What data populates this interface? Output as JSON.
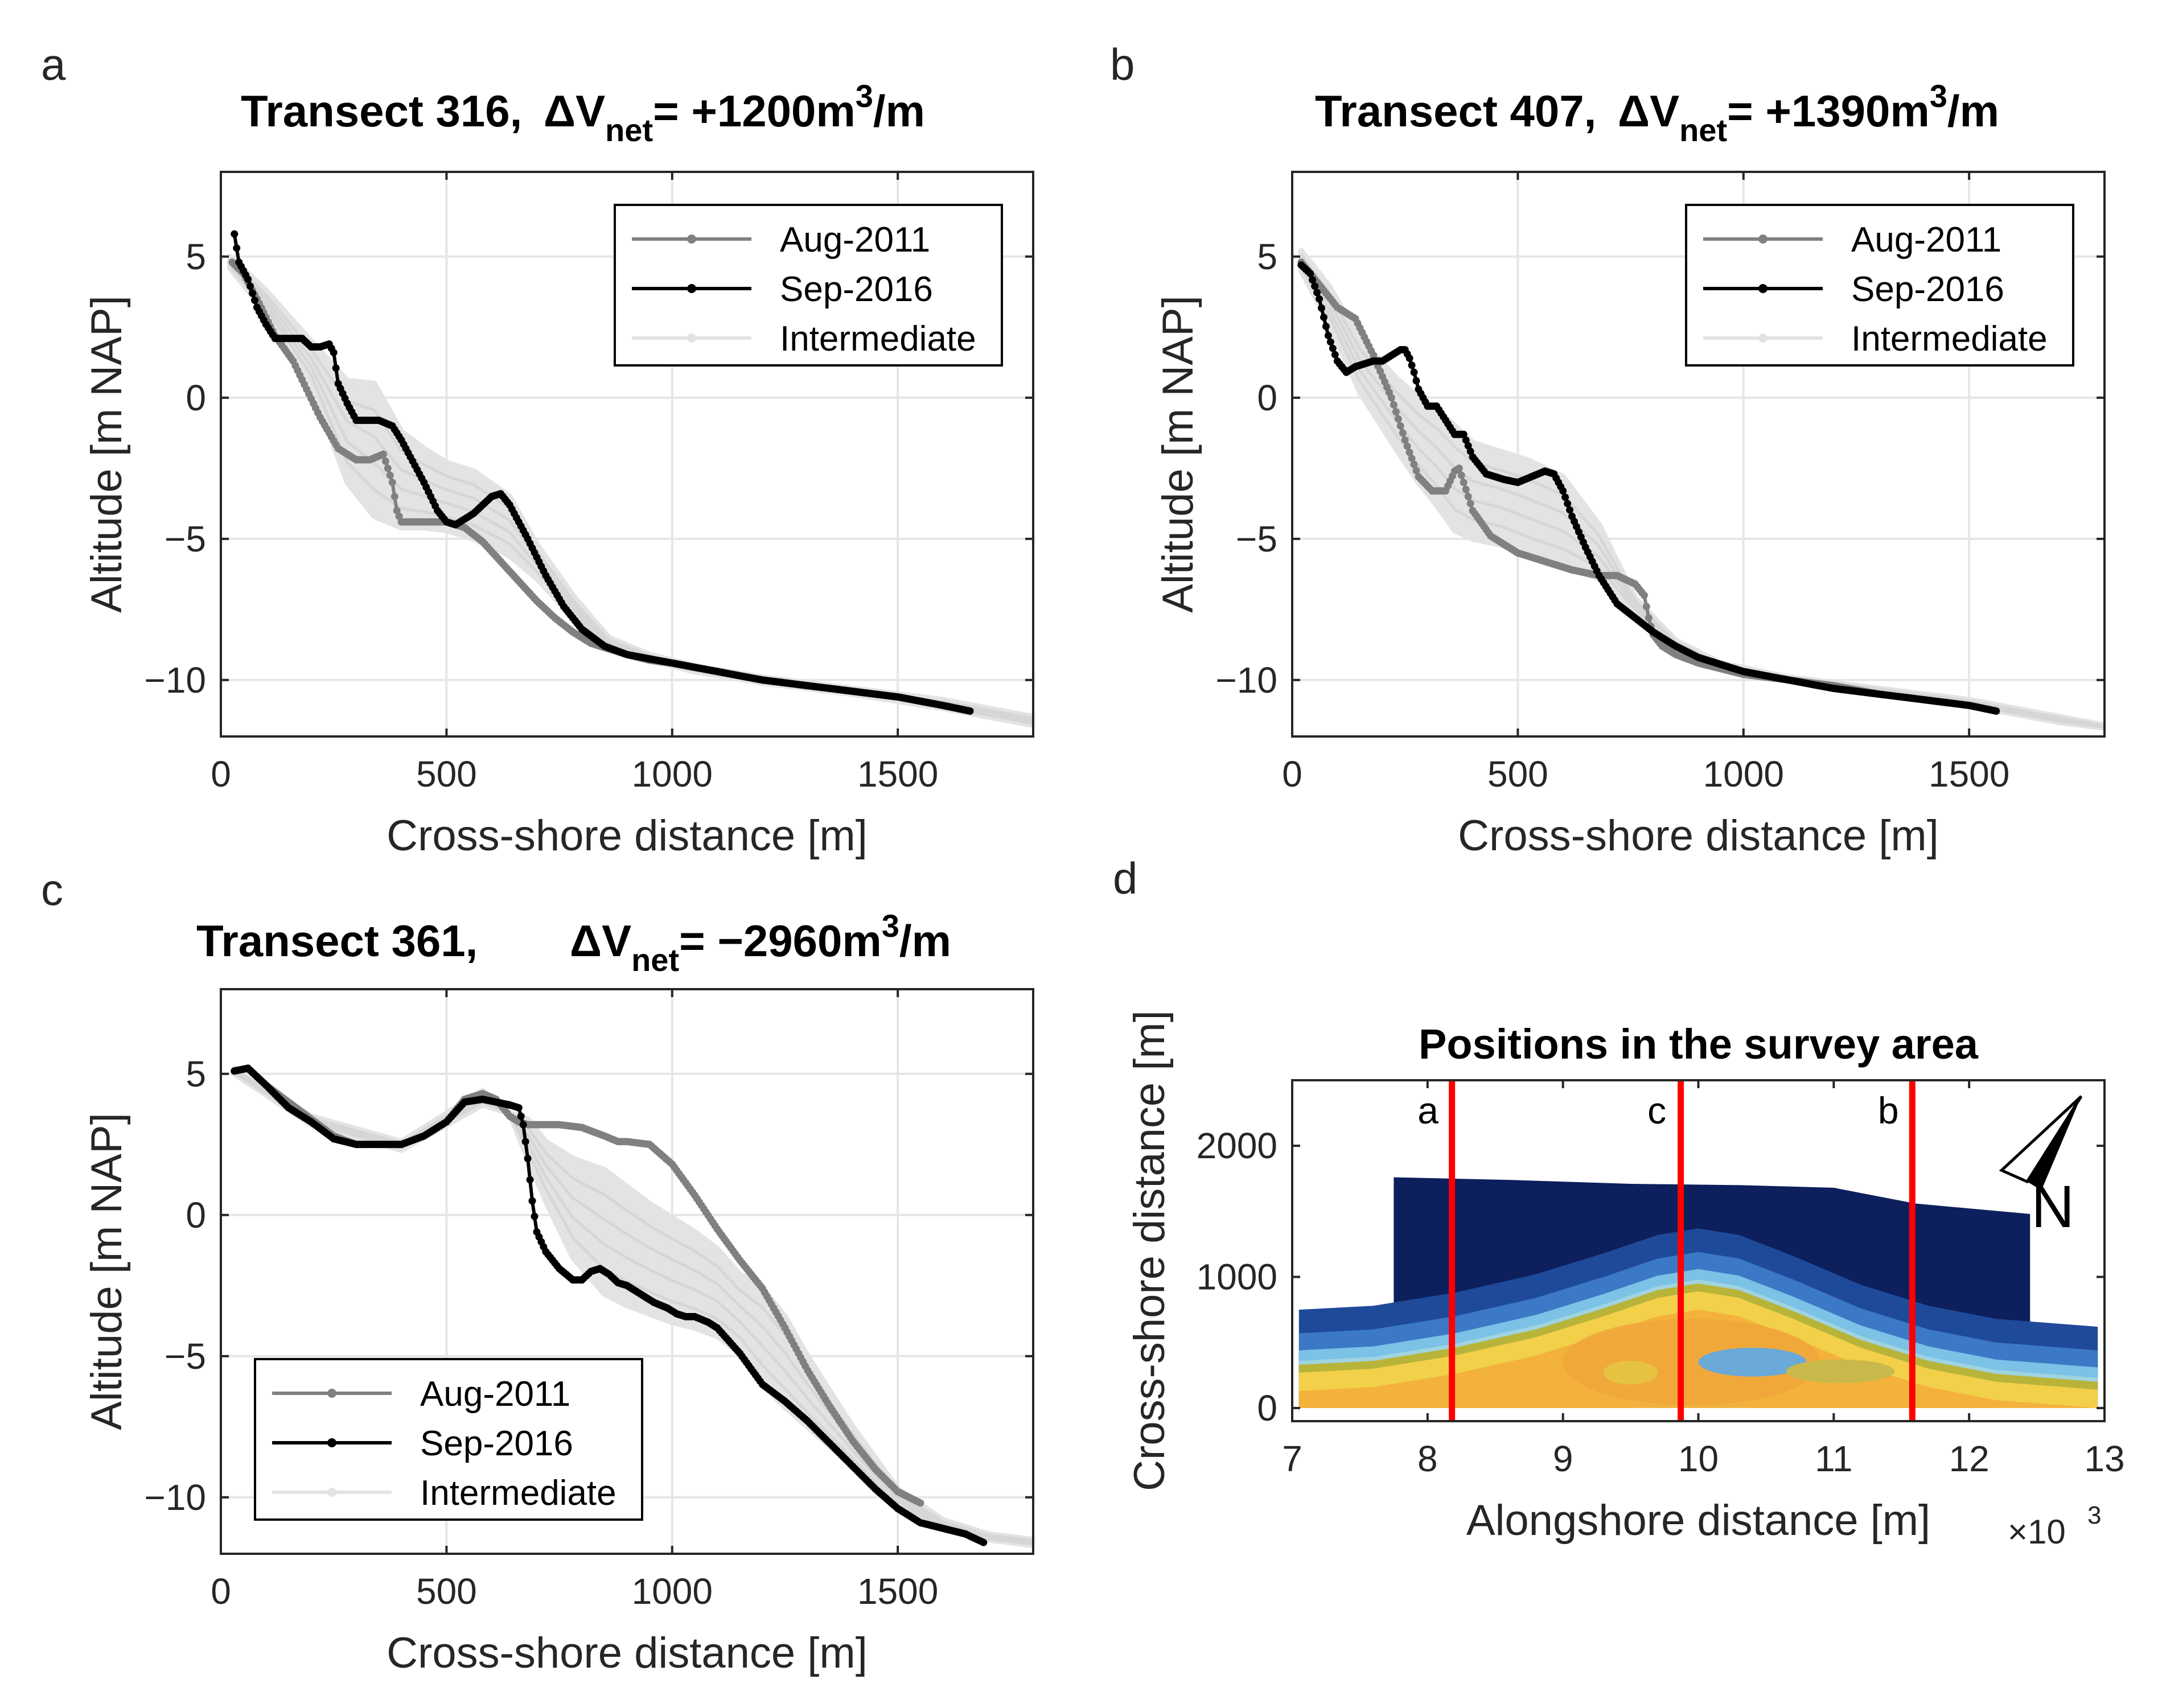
{
  "colors": {
    "aug": "#808080",
    "sep": "#000000",
    "intermediate": "#e3e3e3",
    "grid": "#e6e6e6",
    "transect_line": "#ff0000",
    "axis": "#262626"
  },
  "chart_data": [
    {
      "id": "a",
      "type": "line",
      "panel_letter": "a",
      "title": {
        "text": "Transect 316,",
        "dv_sym": "ΔV",
        "dv_sub": "net",
        "dv_eq": "= +1200m",
        "dv_sup": "3",
        "dv_unit": "/m"
      },
      "xlabel": "Cross-shore distance [m]",
      "ylabel": "Altitude [m NAP]",
      "xlim": [
        0,
        1800
      ],
      "ylim": [
        -12,
        8
      ],
      "xticks": [
        0,
        500,
        1000,
        1500
      ],
      "yticks": [
        -10,
        -5,
        0,
        5
      ],
      "xtick_labels": [
        "0",
        "500",
        "1000",
        "1500"
      ],
      "ytick_labels": [
        "−10",
        "−5",
        "0",
        "5"
      ],
      "grid": true,
      "legend": {
        "position": "top-right",
        "entries": [
          "Aug-2011",
          "Sep-2016",
          "Intermediate"
        ]
      },
      "series": [
        {
          "name": "Aug-2011",
          "x": [
            25,
            50,
            80,
            120,
            160,
            190,
            220,
            260,
            300,
            330,
            360,
            380,
            390,
            400,
            420,
            460,
            500,
            540,
            580,
            620,
            660,
            700,
            740,
            780,
            820,
            860,
            900,
            950,
            1000,
            1100,
            1200,
            1300,
            1400,
            1500,
            1600,
            1660
          ],
          "y": [
            4.8,
            4.4,
            3.5,
            2.2,
            1.3,
            0.3,
            -0.7,
            -1.8,
            -2.2,
            -2.2,
            -2.0,
            -3.0,
            -4.0,
            -4.4,
            -4.4,
            -4.4,
            -4.4,
            -4.6,
            -5.1,
            -5.8,
            -6.5,
            -7.2,
            -7.8,
            -8.3,
            -8.7,
            -8.9,
            -9.1,
            -9.3,
            -9.4,
            -9.7,
            -10.0,
            -10.2,
            -10.4,
            -10.6,
            -10.9,
            -11.1
          ]
        },
        {
          "name": "Sep-2016",
          "x": [
            30,
            40,
            60,
            80,
            100,
            120,
            150,
            180,
            200,
            220,
            240,
            250,
            260,
            280,
            300,
            320,
            350,
            380,
            400,
            420,
            450,
            480,
            500,
            520,
            560,
            600,
            620,
            640,
            680,
            720,
            760,
            800,
            850,
            900,
            1000,
            1100,
            1200,
            1300,
            1400,
            1500,
            1600,
            1660
          ],
          "y": [
            5.8,
            4.8,
            4.2,
            3.2,
            2.6,
            2.1,
            2.1,
            2.1,
            1.8,
            1.8,
            1.9,
            1.6,
            0.5,
            -0.2,
            -0.8,
            -0.8,
            -0.8,
            -1.0,
            -1.5,
            -2.1,
            -3.0,
            -4.0,
            -4.4,
            -4.5,
            -4.1,
            -3.5,
            -3.4,
            -3.8,
            -5.0,
            -6.3,
            -7.4,
            -8.2,
            -8.8,
            -9.1,
            -9.4,
            -9.7,
            -10.0,
            -10.2,
            -10.4,
            -10.6,
            -10.9,
            -11.1
          ]
        }
      ],
      "intermediate_band": {
        "x": [
          20,
          100,
          200,
          280,
          340,
          400,
          450,
          500,
          560,
          640,
          700,
          780,
          860,
          950,
          1050,
          1200,
          1400,
          1600,
          1800
        ],
        "upper": [
          5.0,
          3.8,
          2.0,
          0.6,
          0.5,
          -1.2,
          -1.8,
          -2.3,
          -2.6,
          -3.5,
          -5.2,
          -7.0,
          -8.5,
          -9.1,
          -9.5,
          -9.9,
          -10.3,
          -10.7,
          -11.3
        ],
        "lower": [
          4.6,
          3.0,
          0.5,
          -3.0,
          -4.2,
          -4.6,
          -4.6,
          -4.7,
          -5.0,
          -5.6,
          -6.4,
          -7.8,
          -8.9,
          -9.3,
          -9.7,
          -10.1,
          -10.5,
          -11.0,
          -11.6
        ]
      }
    },
    {
      "id": "b",
      "type": "line",
      "panel_letter": "b",
      "title": {
        "text": "Transect 407,",
        "dv_sym": "ΔV",
        "dv_sub": "net",
        "dv_eq": "= +1390m",
        "dv_sup": "3",
        "dv_unit": "/m"
      },
      "xlabel": "Cross-shore distance [m]",
      "ylabel": "Altitude [m NAP]",
      "xlim": [
        0,
        1800
      ],
      "ylim": [
        -12,
        8
      ],
      "xticks": [
        0,
        500,
        1000,
        1500
      ],
      "yticks": [
        -10,
        -5,
        0,
        5
      ],
      "xtick_labels": [
        "0",
        "500",
        "1000",
        "1500"
      ],
      "ytick_labels": [
        "−10",
        "−5",
        "0",
        "5"
      ],
      "grid": true,
      "legend": {
        "position": "top-right",
        "entries": [
          "Aug-2011",
          "Sep-2016",
          "Intermediate"
        ]
      },
      "series": [
        {
          "name": "Aug-2011",
          "x": [
            20,
            60,
            100,
            140,
            180,
            220,
            250,
            280,
            310,
            340,
            360,
            370,
            380,
            400,
            440,
            500,
            560,
            620,
            680,
            720,
            760,
            780,
            790,
            800,
            820,
            850,
            900,
            1000,
            1100,
            1200,
            1300,
            1400,
            1500,
            1560
          ],
          "y": [
            4.8,
            4.0,
            3.2,
            2.8,
            1.5,
            0.0,
            -1.5,
            -2.8,
            -3.3,
            -3.3,
            -2.6,
            -2.5,
            -3.0,
            -4.0,
            -4.9,
            -5.5,
            -5.8,
            -6.1,
            -6.3,
            -6.3,
            -6.6,
            -7.0,
            -7.8,
            -8.4,
            -8.8,
            -9.1,
            -9.4,
            -9.8,
            -10.0,
            -10.2,
            -10.5,
            -10.7,
            -10.9,
            -11.1
          ]
        },
        {
          "name": "Sep-2016",
          "x": [
            20,
            40,
            60,
            80,
            100,
            120,
            140,
            160,
            180,
            200,
            220,
            240,
            250,
            260,
            270,
            280,
            300,
            320,
            340,
            360,
            380,
            400,
            430,
            470,
            500,
            530,
            560,
            580,
            600,
            620,
            650,
            680,
            720,
            760,
            800,
            850,
            900,
            1000,
            1100,
            1200,
            1300,
            1400,
            1500,
            1560
          ],
          "y": [
            4.7,
            4.4,
            3.5,
            2.2,
            1.3,
            0.9,
            1.1,
            1.2,
            1.3,
            1.3,
            1.5,
            1.7,
            1.7,
            1.4,
            0.9,
            0.3,
            -0.3,
            -0.3,
            -0.8,
            -1.3,
            -1.3,
            -2.1,
            -2.7,
            -2.9,
            -3.0,
            -2.8,
            -2.6,
            -2.7,
            -3.3,
            -4.2,
            -5.3,
            -6.3,
            -7.3,
            -7.8,
            -8.3,
            -8.8,
            -9.2,
            -9.7,
            -10.0,
            -10.3,
            -10.5,
            -10.7,
            -10.9,
            -11.1
          ]
        }
      ],
      "intermediate_band": {
        "x": [
          20,
          80,
          150,
          230,
          280,
          320,
          360,
          400,
          460,
          520,
          600,
          680,
          760,
          850,
          950,
          1100,
          1300,
          1500,
          1700,
          1800
        ],
        "upper": [
          5.2,
          4.0,
          2.1,
          0.7,
          0.0,
          -0.4,
          -1.0,
          -1.6,
          -1.9,
          -2.2,
          -2.8,
          -4.5,
          -7.1,
          -8.6,
          -9.4,
          -9.9,
          -10.3,
          -10.7,
          -11.3,
          -11.6
        ],
        "lower": [
          4.5,
          2.7,
          0.2,
          -1.8,
          -3.0,
          -3.8,
          -4.7,
          -5.0,
          -5.2,
          -5.6,
          -6.0,
          -6.4,
          -7.6,
          -8.9,
          -9.6,
          -10.0,
          -10.4,
          -10.9,
          -11.5,
          -11.7
        ]
      }
    },
    {
      "id": "c",
      "type": "line",
      "panel_letter": "c",
      "title": {
        "text": "Transect 361,",
        "dv_sym": "ΔV",
        "dv_sub": "net",
        "dv_eq": "= −2960m",
        "dv_sup": "3",
        "dv_unit": "/m"
      },
      "xlabel": "Cross-shore distance [m]",
      "ylabel": "Altitude [m NAP]",
      "xlim": [
        0,
        1800
      ],
      "ylim": [
        -12,
        8
      ],
      "xticks": [
        0,
        500,
        1000,
        1500
      ],
      "yticks": [
        -10,
        -5,
        0,
        5
      ],
      "xtick_labels": [
        "0",
        "500",
        "1000",
        "1500"
      ],
      "ytick_labels": [
        "−10",
        "−5",
        "0",
        "5"
      ],
      "grid": true,
      "legend": {
        "position": "bottom-left",
        "entries": [
          "Aug-2011",
          "Sep-2016",
          "Intermediate"
        ]
      },
      "series": [
        {
          "name": "Aug-2011",
          "x": [
            30,
            60,
            100,
            150,
            200,
            250,
            300,
            350,
            400,
            450,
            500,
            540,
            580,
            610,
            640,
            660,
            680,
            700,
            750,
            800,
            850,
            880,
            900,
            950,
            1000,
            1050,
            1100,
            1150,
            1200,
            1250,
            1300,
            1350,
            1400,
            1450,
            1500,
            1550
          ],
          "y": [
            5.1,
            5.2,
            4.6,
            4.0,
            3.4,
            2.8,
            2.5,
            2.5,
            2.5,
            2.8,
            3.3,
            4.1,
            4.3,
            4.1,
            3.5,
            3.3,
            3.2,
            3.2,
            3.2,
            3.1,
            2.8,
            2.6,
            2.6,
            2.5,
            1.8,
            0.7,
            -0.5,
            -1.6,
            -2.6,
            -4.0,
            -5.5,
            -6.8,
            -8.0,
            -9.0,
            -9.8,
            -10.2
          ]
        },
        {
          "name": "Sep-2016",
          "x": [
            30,
            60,
            100,
            150,
            200,
            250,
            300,
            350,
            400,
            450,
            500,
            540,
            580,
            610,
            640,
            660,
            670,
            680,
            690,
            700,
            720,
            750,
            780,
            800,
            820,
            840,
            860,
            880,
            900,
            930,
            960,
            990,
            1010,
            1030,
            1050,
            1080,
            1100,
            1150,
            1200,
            1250,
            1300,
            1350,
            1400,
            1450,
            1500,
            1550,
            1600,
            1650,
            1690
          ],
          "y": [
            5.1,
            5.2,
            4.6,
            3.8,
            3.3,
            2.7,
            2.5,
            2.5,
            2.5,
            2.8,
            3.3,
            4.0,
            4.1,
            4.0,
            3.9,
            3.8,
            3.2,
            2.0,
            0.5,
            -0.6,
            -1.3,
            -1.9,
            -2.3,
            -2.3,
            -2.0,
            -1.9,
            -2.1,
            -2.4,
            -2.5,
            -2.8,
            -3.1,
            -3.3,
            -3.5,
            -3.6,
            -3.6,
            -3.8,
            -4.0,
            -4.9,
            -6.0,
            -6.6,
            -7.3,
            -8.1,
            -8.9,
            -9.7,
            -10.4,
            -10.9,
            -11.1,
            -11.3,
            -11.6
          ]
        }
      ],
      "intermediate_band": {
        "x": [
          30,
          200,
          400,
          580,
          640,
          680,
          720,
          780,
          850,
          900,
          950,
          1000,
          1050,
          1100,
          1150,
          1200,
          1250,
          1300,
          1400,
          1500,
          1600,
          1700,
          1800
        ],
        "upper": [
          5.2,
          3.5,
          2.6,
          4.4,
          3.6,
          3.4,
          2.6,
          2.0,
          1.6,
          1.0,
          0.4,
          -0.1,
          -0.6,
          -1.2,
          -2.1,
          -2.6,
          -3.6,
          -5.0,
          -7.5,
          -9.7,
          -10.8,
          -11.3,
          -11.5
        ],
        "lower": [
          5.0,
          3.2,
          2.3,
          3.9,
          3.6,
          2.0,
          0.5,
          -1.5,
          -2.8,
          -3.2,
          -3.5,
          -3.8,
          -4.0,
          -4.3,
          -4.9,
          -6.0,
          -6.8,
          -7.5,
          -8.9,
          -10.4,
          -11.1,
          -11.5,
          -11.7
        ]
      }
    },
    {
      "id": "d",
      "type": "heatmap",
      "panel_letter": "d",
      "title": "Positions in the survey area",
      "xlabel": "Alongshore distance [m]",
      "ylabel": "Cross-shore distance [m]",
      "x_exponent_label": "×10",
      "x_exponent_power": "3",
      "xlim": [
        7,
        13
      ],
      "ylim": [
        -100,
        2500
      ],
      "xticks": [
        7,
        8,
        9,
        10,
        11,
        12,
        13
      ],
      "yticks": [
        0,
        1000,
        2000
      ],
      "xtick_labels": [
        "7",
        "8",
        "9",
        "10",
        "11",
        "12",
        "13"
      ],
      "ytick_labels": [
        "0",
        "1000",
        "2000"
      ],
      "grid": false,
      "north_label": "N",
      "transects": [
        {
          "label": "a",
          "x": 8.18
        },
        {
          "label": "c",
          "x": 9.87
        },
        {
          "label": "b",
          "x": 11.58
        }
      ],
      "survey_outline": {
        "x": [
          7.05,
          7.75,
          7.75,
          8.6,
          9.5,
          10.3,
          11.0,
          11.6,
          12.45,
          12.45,
          12.95
        ],
        "y": [
          680,
          680,
          1760,
          1740,
          1710,
          1700,
          1680,
          1560,
          1480,
          590,
          580
        ]
      },
      "shoal": {
        "x": [
          7.05,
          7.6,
          8.2,
          8.8,
          9.3,
          9.7,
          10.0,
          10.3,
          10.7,
          11.2,
          11.7,
          12.2,
          12.95
        ],
        "top": [
          330,
          360,
          460,
          600,
          760,
          900,
          950,
          900,
          740,
          520,
          360,
          260,
          200
        ]
      }
    }
  ]
}
